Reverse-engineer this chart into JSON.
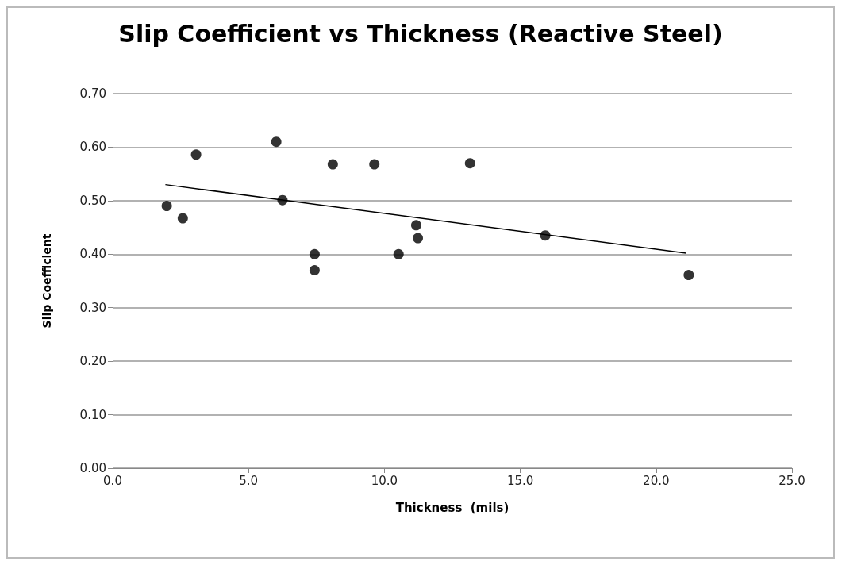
{
  "chart_data": {
    "type": "scatter",
    "title": "Slip Coefficient vs Thickness (Reactive Steel)",
    "xlabel": "Thickness  (mils)",
    "ylabel": "Slip Coefficient",
    "xlim": [
      0,
      25
    ],
    "xticks": [
      {
        "value": 0,
        "label": "0.0"
      },
      {
        "value": 5,
        "label": "5.0"
      },
      {
        "value": 10,
        "label": "10.0"
      },
      {
        "value": 15,
        "label": "15.0"
      },
      {
        "value": 20,
        "label": "20.0"
      },
      {
        "value": 25,
        "label": "25.0"
      }
    ],
    "ylim": [
      0,
      0.7
    ],
    "yticks": [
      {
        "value": 0,
        "label": "0.00"
      },
      {
        "value": 0.1,
        "label": "0.10"
      },
      {
        "value": 0.2,
        "label": "0.20"
      },
      {
        "value": 0.3,
        "label": "0.30"
      },
      {
        "value": 0.4,
        "label": "0.40"
      },
      {
        "value": 0.5,
        "label": "0.50"
      },
      {
        "value": 0.6,
        "label": "0.60"
      },
      {
        "value": 0.7,
        "label": "0.70"
      }
    ],
    "grid": "y",
    "marker": "circle",
    "series": [
      {
        "color": "#000000",
        "x": [
          1.99,
          2.58,
          3.07,
          6.02,
          6.25,
          7.43,
          7.43,
          8.1,
          9.63,
          10.52,
          11.17,
          11.23,
          13.15,
          15.92,
          21.2
        ],
        "values": [
          0.49,
          0.467,
          0.586,
          0.61,
          0.501,
          0.4,
          0.37,
          0.568,
          0.568,
          0.4,
          0.454,
          0.43,
          0.57,
          0.435,
          0.361
        ]
      },
      {
        "type": "line",
        "color": "#000000",
        "marker": "none",
        "x": [
          1.94,
          21.1
        ],
        "values": [
          0.53,
          0.402
        ]
      }
    ]
  }
}
